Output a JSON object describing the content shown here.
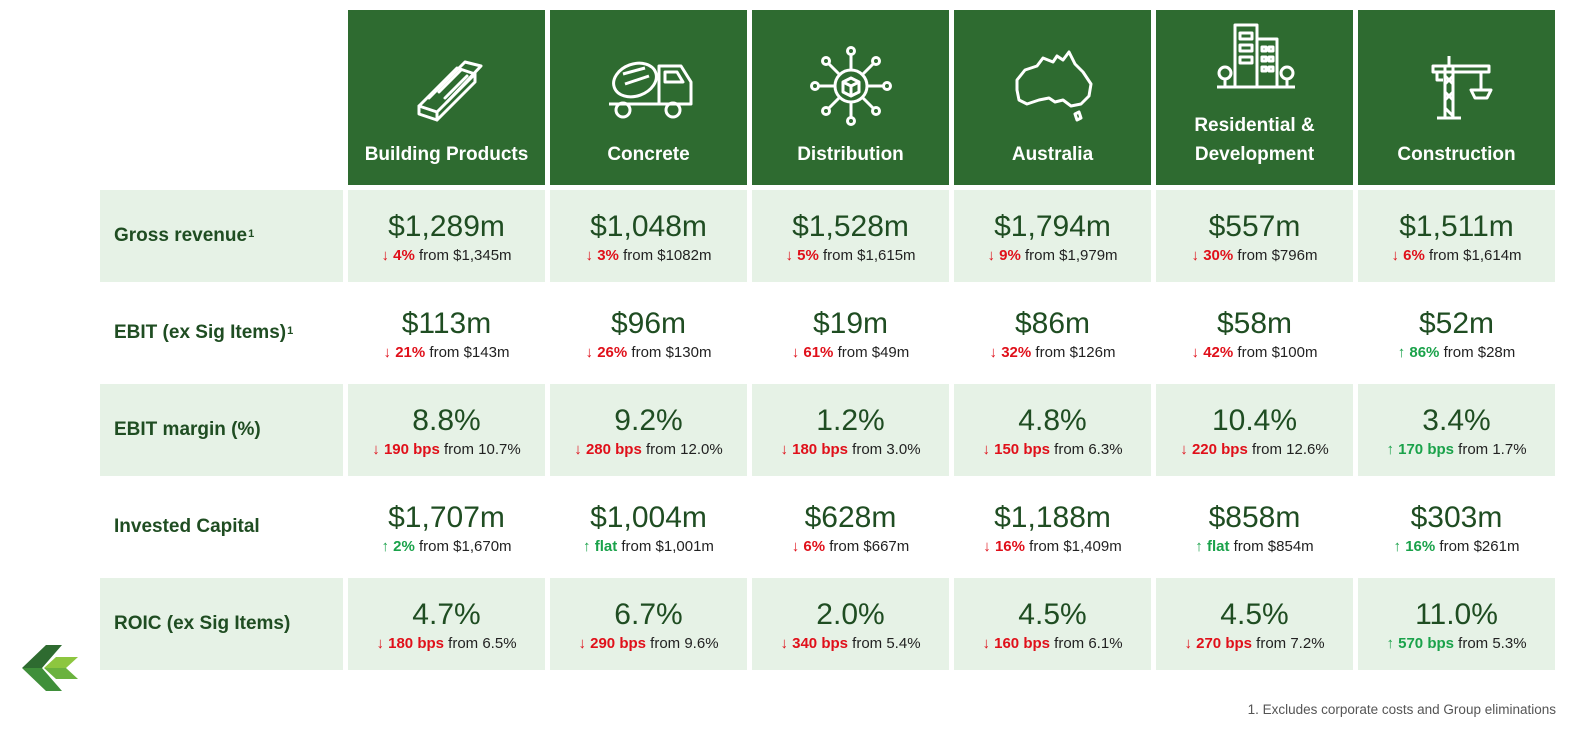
{
  "segments": [
    {
      "label": "Building Products",
      "icon": "lumber-planks-icon"
    },
    {
      "label": "Concrete",
      "icon": "concrete-mixer-truck-icon"
    },
    {
      "label": "Distribution",
      "icon": "distribution-network-icon"
    },
    {
      "label": "Australia",
      "icon": "australia-map-icon"
    },
    {
      "label": "Residential &\nDevelopment",
      "icon": "buildings-icon"
    },
    {
      "label": "Construction",
      "icon": "tower-crane-icon"
    }
  ],
  "rows": [
    {
      "label": "Gross revenue",
      "sup": "1",
      "cells": [
        {
          "value": "$1,289m",
          "dir": "down",
          "arrow": "↓",
          "change": "4%",
          "from": "from $1,345m"
        },
        {
          "value": "$1,048m",
          "dir": "down",
          "arrow": "↓",
          "change": "3%",
          "from": "from $1082m"
        },
        {
          "value": "$1,528m",
          "dir": "down",
          "arrow": "↓",
          "change": "5%",
          "from": "from $1,615m"
        },
        {
          "value": "$1,794m",
          "dir": "down",
          "arrow": "↓",
          "change": "9%",
          "from": "from $1,979m"
        },
        {
          "value": "$557m",
          "dir": "down",
          "arrow": "↓",
          "change": "30%",
          "from": "from $796m"
        },
        {
          "value": "$1,511m",
          "dir": "down",
          "arrow": "↓",
          "change": "6%",
          "from": "from $1,614m"
        }
      ]
    },
    {
      "label": "EBIT (ex Sig Items)",
      "sup": "1",
      "cells": [
        {
          "value": "$113m",
          "dir": "down",
          "arrow": "↓",
          "change": "21%",
          "from": "from $143m"
        },
        {
          "value": "$96m",
          "dir": "down",
          "arrow": "↓",
          "change": "26%",
          "from": "from $130m"
        },
        {
          "value": "$19m",
          "dir": "down",
          "arrow": "↓",
          "change": "61%",
          "from": "from $49m"
        },
        {
          "value": "$86m",
          "dir": "down",
          "arrow": "↓",
          "change": "32%",
          "from": "from $126m"
        },
        {
          "value": "$58m",
          "dir": "down",
          "arrow": "↓",
          "change": "42%",
          "from": "from $100m"
        },
        {
          "value": "$52m",
          "dir": "up",
          "arrow": "↑",
          "change": "86%",
          "from": "from $28m"
        }
      ]
    },
    {
      "label": "EBIT margin (%)",
      "sup": "",
      "cells": [
        {
          "value": "8.8%",
          "dir": "down",
          "arrow": "↓",
          "change": "190 bps",
          "from": "from 10.7%"
        },
        {
          "value": "9.2%",
          "dir": "down",
          "arrow": "↓",
          "change": "280 bps",
          "from": "from 12.0%"
        },
        {
          "value": "1.2%",
          "dir": "down",
          "arrow": "↓",
          "change": "180 bps",
          "from": "from 3.0%"
        },
        {
          "value": "4.8%",
          "dir": "down",
          "arrow": "↓",
          "change": "150 bps",
          "from": "from 6.3%"
        },
        {
          "value": "10.4%",
          "dir": "down",
          "arrow": "↓",
          "change": "220 bps",
          "from": "from 12.6%"
        },
        {
          "value": "3.4%",
          "dir": "up",
          "arrow": "↑",
          "change": "170 bps",
          "from": "from 1.7%"
        }
      ]
    },
    {
      "label": "Invested Capital",
      "sup": "",
      "cells": [
        {
          "value": "$1,707m",
          "dir": "up",
          "arrow": "↑",
          "change": "2%",
          "from": "from $1,670m"
        },
        {
          "value": "$1,004m",
          "dir": "up",
          "arrow": "↑",
          "change": "flat",
          "from": "from $1,001m"
        },
        {
          "value": "$628m",
          "dir": "down",
          "arrow": "↓",
          "change": "6%",
          "from": "from $667m"
        },
        {
          "value": "$1,188m",
          "dir": "down",
          "arrow": "↓",
          "change": "16%",
          "from": "from $1,409m"
        },
        {
          "value": "$858m",
          "dir": "up",
          "arrow": "↑",
          "change": "flat",
          "from": "from $854m"
        },
        {
          "value": "$303m",
          "dir": "up",
          "arrow": "↑",
          "change": "16%",
          "from": "from $261m"
        }
      ]
    },
    {
      "label": "ROIC (ex Sig Items)",
      "sup": "",
      "cells": [
        {
          "value": "4.7%",
          "dir": "down",
          "arrow": "↓",
          "change": "180 bps",
          "from": "from 6.5%"
        },
        {
          "value": "6.7%",
          "dir": "down",
          "arrow": "↓",
          "change": "290 bps",
          "from": "from 9.6%"
        },
        {
          "value": "2.0%",
          "dir": "down",
          "arrow": "↓",
          "change": "340 bps",
          "from": "from 5.4%"
        },
        {
          "value": "4.5%",
          "dir": "down",
          "arrow": "↓",
          "change": "160 bps",
          "from": "from 6.1%"
        },
        {
          "value": "4.5%",
          "dir": "down",
          "arrow": "↓",
          "change": "270 bps",
          "from": "from 7.2%"
        },
        {
          "value": "11.0%",
          "dir": "up",
          "arrow": "↑",
          "change": "570 bps",
          "from": "from 5.3%"
        }
      ]
    }
  ],
  "footnote": "1. Excludes corporate costs and Group eliminations",
  "colors": {
    "header_green": "#2e6b30",
    "row_tint": "#e6f2e6",
    "down_red": "#e0101a",
    "up_green": "#1aa24a"
  },
  "logo": "company-logo"
}
